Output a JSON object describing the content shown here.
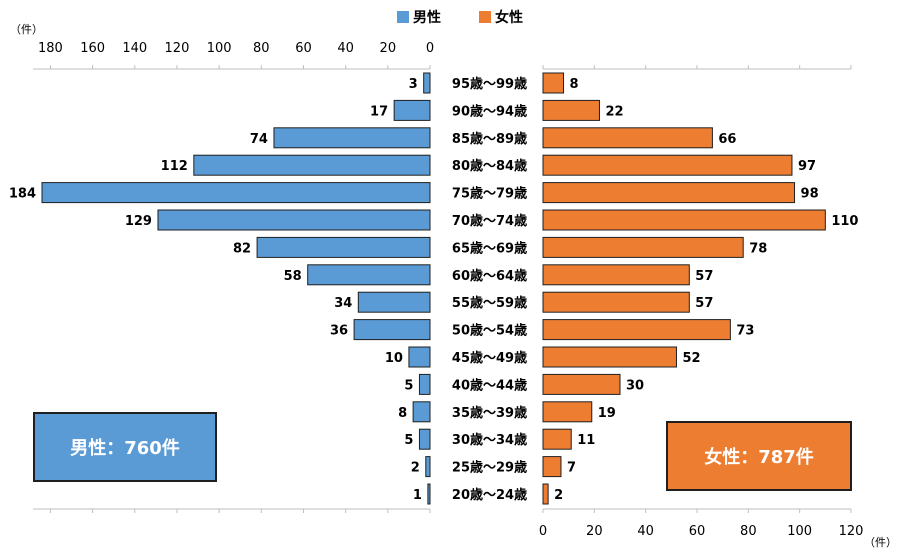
{
  "chart_data": {
    "type": "bar",
    "orientation": "horizontal-butterfly",
    "categories": [
      "95歳～99歳",
      "90歳～94歳",
      "85歳～89歳",
      "80歳～84歳",
      "75歳～79歳",
      "70歳～74歳",
      "65歳～69歳",
      "60歳～64歳",
      "55歳～59歳",
      "50歳～54歳",
      "45歳～49歳",
      "40歳～44歳",
      "35歳～39歳",
      "30歳～34歳",
      "25歳～29歳",
      "20歳～24歳"
    ],
    "series": [
      {
        "name": "男性",
        "color": "#5b9bd5",
        "values": [
          3,
          17,
          74,
          112,
          184,
          129,
          82,
          58,
          34,
          36,
          10,
          5,
          8,
          5,
          2,
          1
        ]
      },
      {
        "name": "女性",
        "color": "#ed7d31",
        "values": [
          8,
          22,
          66,
          97,
          98,
          110,
          78,
          57,
          57,
          73,
          52,
          30,
          19,
          11,
          7,
          2
        ]
      }
    ],
    "male_axis": {
      "ticks": [
        180,
        160,
        140,
        120,
        100,
        80,
        60,
        40,
        20,
        0
      ],
      "unit": "（件）",
      "lim": [
        0,
        180
      ]
    },
    "female_axis": {
      "ticks": [
        0,
        20,
        40,
        60,
        80,
        100,
        120
      ],
      "unit": "（件）",
      "lim": [
        0,
        120
      ]
    },
    "legend_position": "top-center"
  },
  "totals": {
    "male": "男性：760件",
    "female": "女性：787件"
  }
}
